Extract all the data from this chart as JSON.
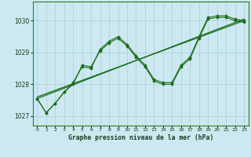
{
  "xlabel": "Graphe pression niveau de la mer (hPa)",
  "xlim": [
    -0.5,
    23.5
  ],
  "ylim": [
    1026.7,
    1030.6
  ],
  "yticks": [
    1027,
    1028,
    1029,
    1030
  ],
  "xticks": [
    0,
    1,
    2,
    3,
    4,
    5,
    6,
    7,
    8,
    9,
    10,
    11,
    12,
    13,
    14,
    15,
    16,
    17,
    18,
    19,
    20,
    21,
    22,
    23
  ],
  "bg_color": "#cce8f0",
  "line_color": "#1a6b1a",
  "grid_color": "#aacdd8",
  "border_color": "#2d7a2d",
  "series1": [
    [
      0,
      1027.55
    ],
    [
      1,
      1027.1
    ],
    [
      2,
      1027.4
    ],
    [
      3,
      1027.75
    ],
    [
      4,
      1028.05
    ],
    [
      5,
      1028.55
    ],
    [
      6,
      1028.5
    ],
    [
      7,
      1029.1
    ],
    [
      8,
      1029.35
    ],
    [
      9,
      1029.5
    ],
    [
      10,
      1029.25
    ],
    [
      11,
      1028.9
    ],
    [
      12,
      1028.6
    ],
    [
      13,
      1028.15
    ],
    [
      14,
      1028.05
    ],
    [
      15,
      1028.05
    ],
    [
      16,
      1028.6
    ],
    [
      17,
      1028.85
    ],
    [
      18,
      1029.5
    ],
    [
      19,
      1030.1
    ],
    [
      20,
      1030.15
    ],
    [
      21,
      1030.15
    ],
    [
      22,
      1030.05
    ],
    [
      23,
      1030.0
    ]
  ],
  "series2": [
    [
      0,
      1027.55
    ],
    [
      1,
      1027.1
    ],
    [
      2,
      1027.4
    ],
    [
      3,
      1027.75
    ],
    [
      4,
      1028.0
    ],
    [
      5,
      1028.6
    ],
    [
      6,
      1028.55
    ],
    [
      7,
      1029.05
    ],
    [
      8,
      1029.3
    ],
    [
      9,
      1029.45
    ],
    [
      10,
      1029.2
    ],
    [
      11,
      1028.85
    ],
    [
      12,
      1028.55
    ],
    [
      13,
      1028.1
    ],
    [
      14,
      1028.0
    ],
    [
      15,
      1028.0
    ],
    [
      16,
      1028.55
    ],
    [
      17,
      1028.8
    ],
    [
      18,
      1029.45
    ],
    [
      19,
      1030.05
    ],
    [
      20,
      1030.1
    ],
    [
      21,
      1030.1
    ],
    [
      22,
      1030.0
    ],
    [
      23,
      1029.95
    ]
  ],
  "trend_line": [
    [
      0,
      1027.55
    ],
    [
      23,
      1030.05
    ]
  ],
  "trend_line2": [
    [
      0,
      1027.6
    ],
    [
      23,
      1030.0
    ]
  ]
}
